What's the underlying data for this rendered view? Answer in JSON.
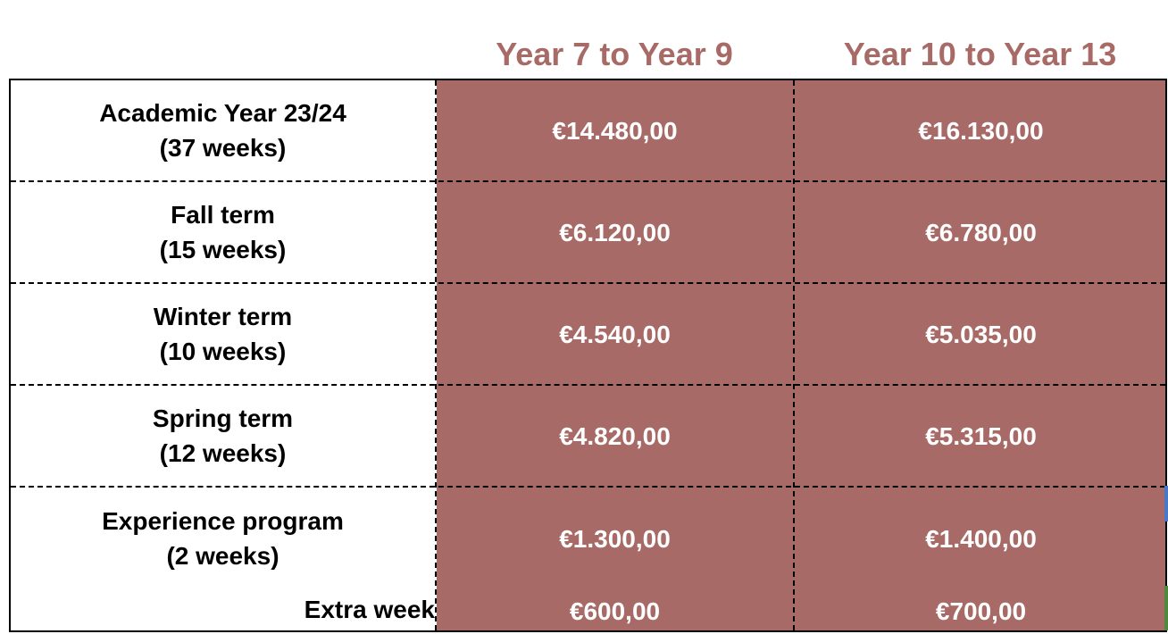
{
  "columns": [
    {
      "label": "Year 7 to Year 9"
    },
    {
      "label": "Year 10 to Year 13"
    }
  ],
  "rows": [
    {
      "label_line1": "Academic Year 23/24",
      "label_line2": "(37 weeks)",
      "values": [
        "€14.480,00",
        "€16.130,00"
      ]
    },
    {
      "label_line1": "Fall term",
      "label_line2": "(15 weeks)",
      "values": [
        "€6.120,00",
        "€6.780,00"
      ]
    },
    {
      "label_line1": "Winter term",
      "label_line2": "(10 weeks)",
      "values": [
        "€4.540,00",
        "€5.035,00"
      ]
    },
    {
      "label_line1": "Spring term",
      "label_line2": "(12 weeks)",
      "values": [
        "€4.820,00",
        "€5.315,00"
      ]
    },
    {
      "label_line1": "Experience program",
      "label_line2": "(2 weeks)",
      "values": [
        "€1.300,00",
        "€1.400,00"
      ]
    },
    {
      "label_line1": "Extra week",
      "label_line2": "",
      "values": [
        "€600,00",
        "€700,00"
      ]
    }
  ],
  "colors": {
    "accent": "#a86a66",
    "value_text": "#ffffff",
    "label_text": "#000000",
    "border": "#000000"
  }
}
